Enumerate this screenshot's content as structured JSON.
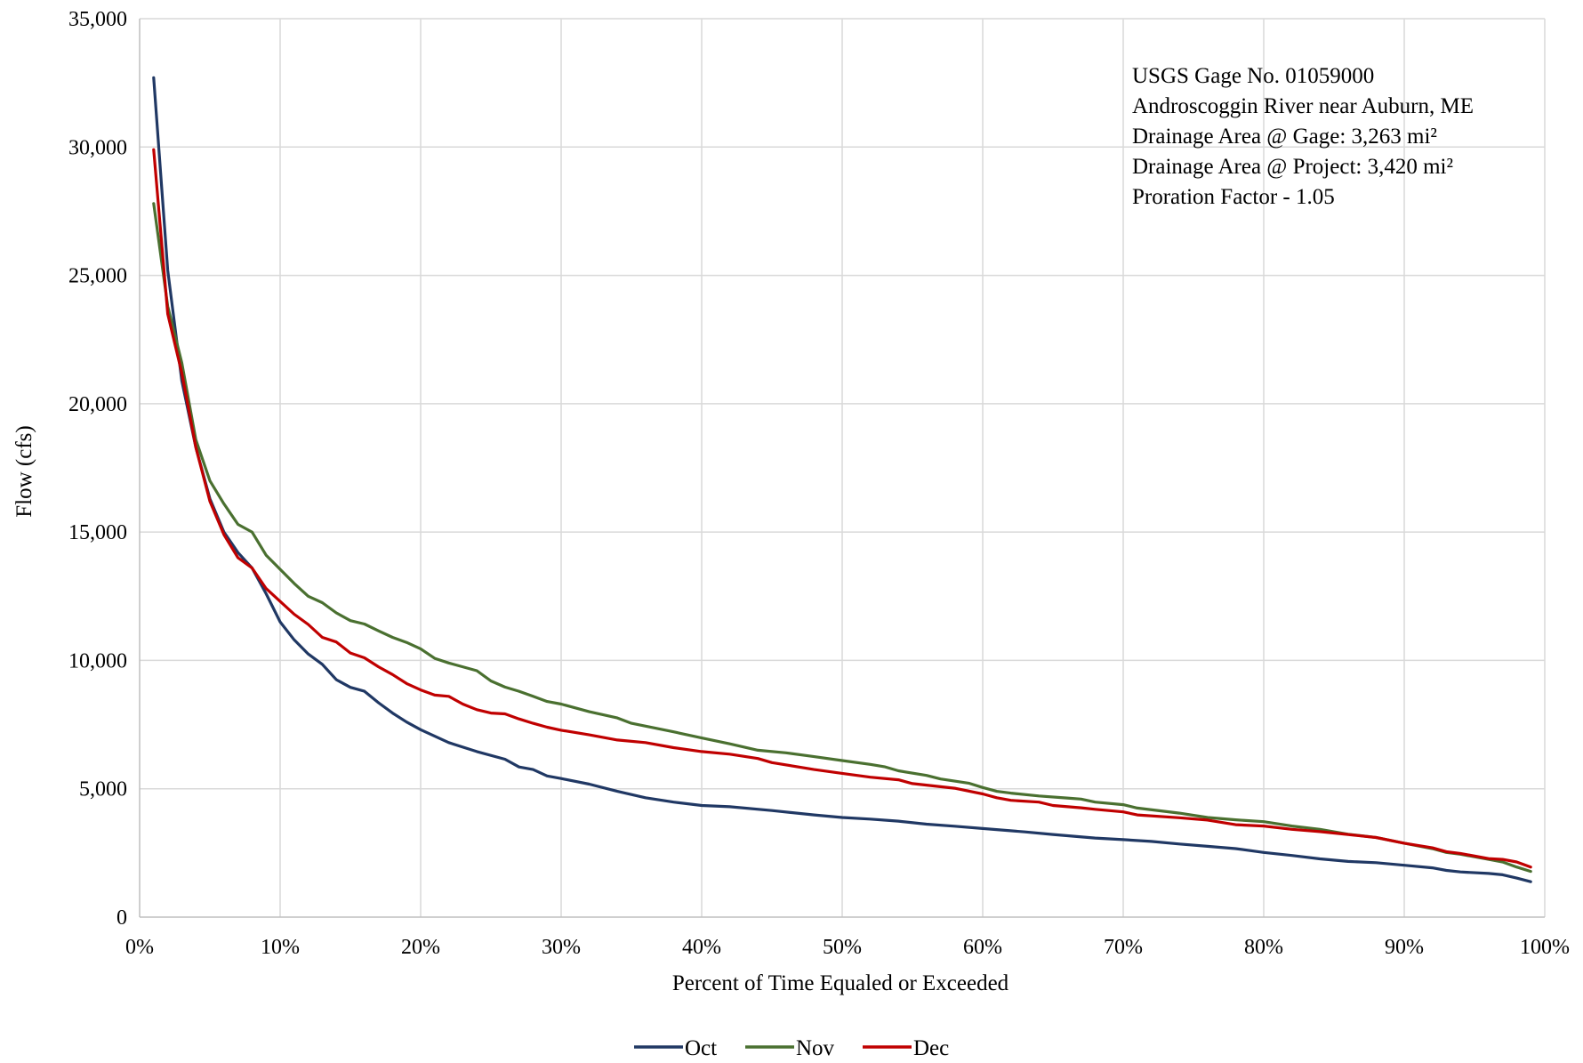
{
  "chart_data": {
    "type": "line",
    "xlabel": "Percent of Time Equaled or Exceeded",
    "ylabel": "Flow (cfs)",
    "xlim": [
      0,
      100
    ],
    "ylim": [
      0,
      35000
    ],
    "x_ticks": [
      0,
      10,
      20,
      30,
      40,
      50,
      60,
      70,
      80,
      90,
      100
    ],
    "x_tick_labels": [
      "0%",
      "10%",
      "20%",
      "30%",
      "40%",
      "50%",
      "60%",
      "70%",
      "80%",
      "90%",
      "100%"
    ],
    "y_ticks": [
      0,
      5000,
      10000,
      15000,
      20000,
      25000,
      30000,
      35000
    ],
    "y_tick_labels": [
      "0",
      "5,000",
      "10,000",
      "15,000",
      "20,000",
      "25,000",
      "30,000",
      "35,000"
    ],
    "grid": true,
    "legend_position": "bottom",
    "annotation_lines": [
      "USGS Gage No. 01059000",
      "Androscoggin River near Auburn, ME",
      "Drainage Area @ Gage: 3,263 mi²",
      "Drainage Area @ Project: 3,420 mi²",
      "Proration Factor - 1.05"
    ],
    "series": [
      {
        "name": "Oct",
        "color": "#203864",
        "x": [
          1,
          2,
          3,
          4,
          5,
          6,
          7,
          8,
          9,
          10,
          11,
          12,
          13,
          14,
          15,
          16,
          17,
          18,
          19,
          20,
          22,
          24,
          26,
          27,
          28,
          29,
          30,
          32,
          34,
          36,
          38,
          40,
          42,
          45,
          48,
          50,
          52,
          54,
          56,
          58,
          60,
          63,
          65,
          68,
          70,
          72,
          74,
          76,
          78,
          80,
          82,
          84,
          86,
          88,
          90,
          92,
          93,
          94,
          96,
          97,
          98,
          99
        ],
        "y": [
          32700,
          25200,
          20900,
          18300,
          16300,
          15000,
          14200,
          13600,
          12600,
          11500,
          10800,
          10250,
          9850,
          9250,
          8950,
          8800,
          8350,
          7950,
          7600,
          7300,
          6800,
          6450,
          6150,
          5850,
          5750,
          5500,
          5400,
          5180,
          4900,
          4650,
          4480,
          4350,
          4300,
          4150,
          3980,
          3880,
          3820,
          3740,
          3620,
          3540,
          3450,
          3320,
          3220,
          3080,
          3020,
          2950,
          2850,
          2760,
          2670,
          2520,
          2400,
          2270,
          2170,
          2120,
          2020,
          1920,
          1820,
          1760,
          1700,
          1650,
          1520,
          1380
        ]
      },
      {
        "name": "Nov",
        "color": "#4a7030",
        "x": [
          1,
          2,
          3,
          4,
          5,
          6,
          7,
          8,
          9,
          10,
          11,
          12,
          13,
          14,
          15,
          16,
          17,
          18,
          19,
          20,
          21,
          22,
          24,
          25,
          26,
          27,
          28,
          29,
          30,
          32,
          34,
          35,
          38,
          40,
          42,
          44,
          46,
          48,
          50,
          52,
          53,
          54,
          56,
          57,
          59,
          60,
          61,
          62,
          64,
          66,
          67,
          68,
          70,
          71,
          74,
          76,
          78,
          80,
          82,
          84,
          86,
          88,
          90,
          92,
          93,
          94,
          96,
          97,
          98,
          99
        ],
        "y": [
          27800,
          23800,
          21600,
          18600,
          17000,
          16100,
          15300,
          15000,
          14100,
          13550,
          13000,
          12500,
          12250,
          11850,
          11550,
          11420,
          11150,
          10900,
          10700,
          10450,
          10080,
          9900,
          9600,
          9200,
          8960,
          8800,
          8600,
          8400,
          8300,
          8000,
          7760,
          7550,
          7220,
          6980,
          6750,
          6500,
          6400,
          6250,
          6100,
          5950,
          5860,
          5700,
          5520,
          5380,
          5220,
          5050,
          4900,
          4830,
          4720,
          4640,
          4600,
          4480,
          4380,
          4250,
          4050,
          3880,
          3790,
          3720,
          3550,
          3420,
          3230,
          3100,
          2880,
          2670,
          2520,
          2450,
          2250,
          2150,
          1950,
          1780
        ]
      },
      {
        "name": "Dec",
        "color": "#c00000",
        "x": [
          1,
          2,
          3,
          4,
          5,
          6,
          7,
          8,
          9,
          10,
          11,
          12,
          13,
          14,
          15,
          16,
          17,
          18,
          19,
          20,
          21,
          22,
          23,
          24,
          25,
          26,
          27,
          28,
          29,
          30,
          32,
          34,
          36,
          38,
          40,
          42,
          44,
          45,
          48,
          50,
          52,
          54,
          55,
          58,
          60,
          61,
          62,
          64,
          65,
          67,
          68,
          70,
          71,
          74,
          76,
          78,
          80,
          82,
          84,
          86,
          88,
          90,
          92,
          93,
          94,
          96,
          97,
          98,
          99
        ],
        "y": [
          29900,
          23500,
          21200,
          18300,
          16200,
          14900,
          14000,
          13600,
          12800,
          12300,
          11800,
          11400,
          10900,
          10720,
          10290,
          10100,
          9750,
          9450,
          9100,
          8850,
          8650,
          8600,
          8300,
          8080,
          7950,
          7920,
          7720,
          7550,
          7400,
          7280,
          7100,
          6900,
          6800,
          6600,
          6450,
          6350,
          6180,
          6020,
          5750,
          5600,
          5450,
          5350,
          5200,
          5020,
          4800,
          4650,
          4550,
          4480,
          4350,
          4260,
          4200,
          4100,
          3980,
          3870,
          3780,
          3600,
          3550,
          3420,
          3330,
          3220,
          3100,
          2880,
          2700,
          2550,
          2480,
          2280,
          2250,
          2150,
          1950
        ]
      }
    ]
  }
}
